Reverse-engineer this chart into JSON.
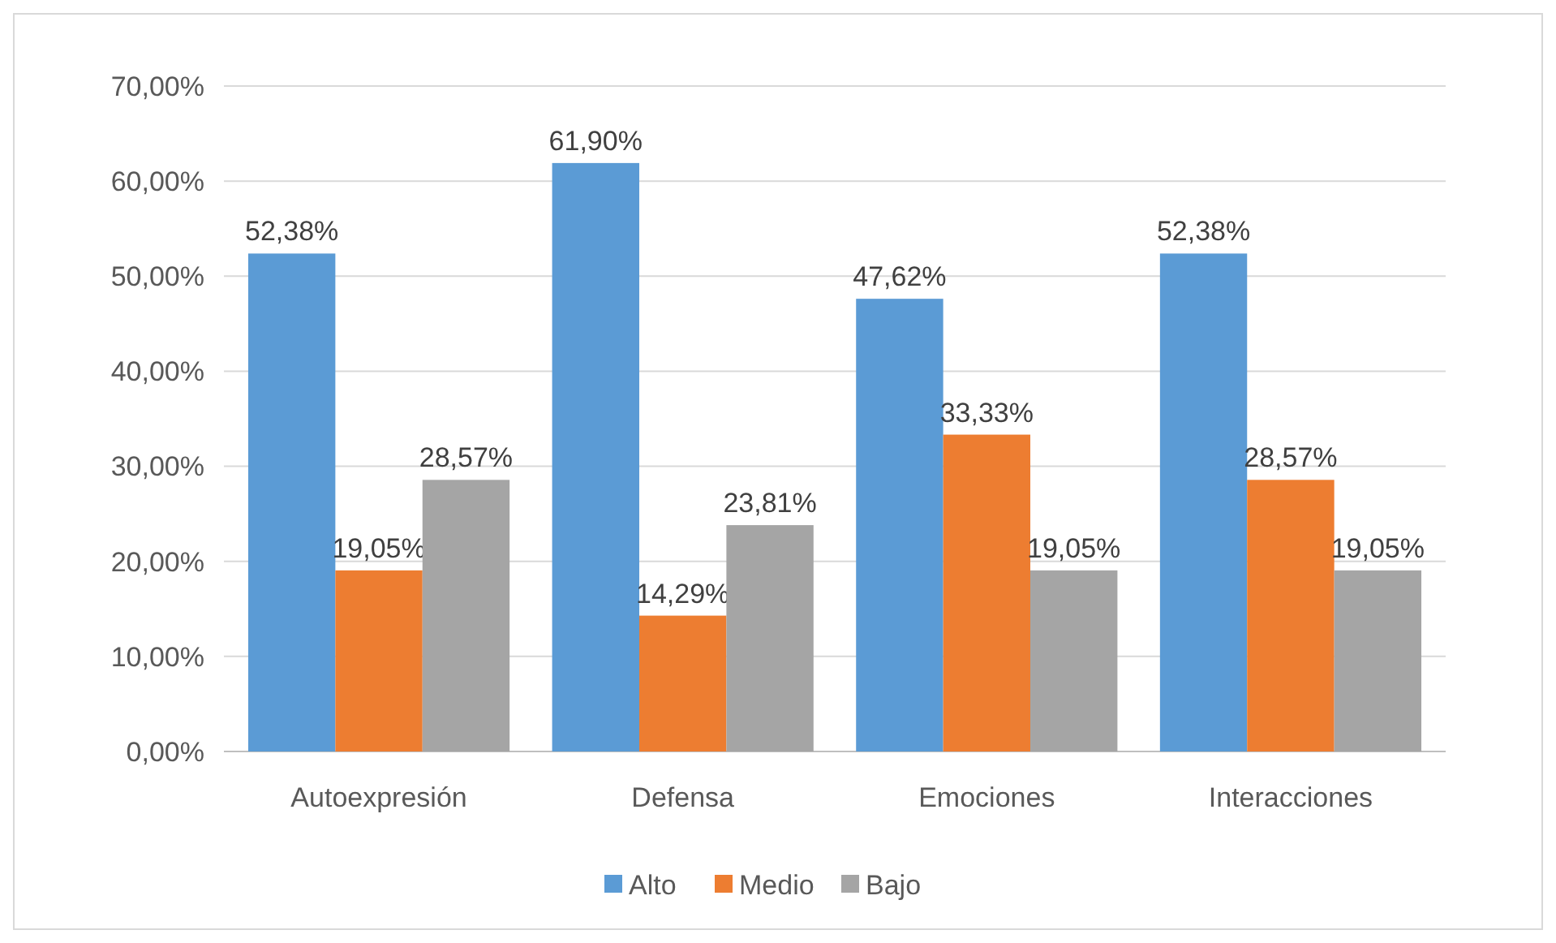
{
  "chart_data": {
    "type": "bar",
    "categories": [
      "Autoexpresión",
      "Defensa",
      "Emociones",
      "Interacciones"
    ],
    "series": [
      {
        "name": "Alto",
        "color": "#5b9bd5",
        "values": [
          52.38,
          61.9,
          47.62,
          52.38
        ],
        "value_labels": [
          "52,38%",
          "61,90%",
          "47,62%",
          "52,38%"
        ]
      },
      {
        "name": "Medio",
        "color": "#ed7d31",
        "values": [
          19.05,
          14.29,
          33.33,
          28.57
        ],
        "value_labels": [
          "19,05%",
          "14,29%",
          "33,33%",
          "28,57%"
        ]
      },
      {
        "name": "Bajo",
        "color": "#a5a5a5",
        "values": [
          28.57,
          23.81,
          19.05,
          19.05
        ],
        "value_labels": [
          "28,57%",
          "23,81%",
          "19,05%",
          "19,05%"
        ]
      }
    ],
    "ylim": [
      0,
      70
    ],
    "yticks": [
      {
        "value": 0,
        "label": "0,00%"
      },
      {
        "value": 10,
        "label": "10,00%"
      },
      {
        "value": 20,
        "label": "20,00%"
      },
      {
        "value": 30,
        "label": "30,00%"
      },
      {
        "value": 40,
        "label": "40,00%"
      },
      {
        "value": 50,
        "label": "50,00%"
      },
      {
        "value": 60,
        "label": "60,00%"
      },
      {
        "value": 70,
        "label": "70,00%"
      }
    ],
    "grid": "y",
    "legend": "bottom"
  }
}
